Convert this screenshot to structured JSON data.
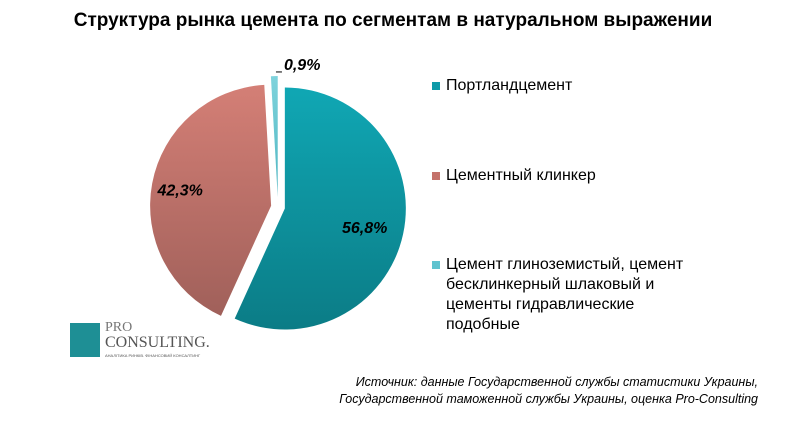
{
  "chart_data": {
    "type": "pie",
    "title": "Структура рынка цемента по сегментам в натуральном выражении",
    "categories": [
      "Портландцемент",
      "Цементный клинкер",
      "Цемент глиноземистый, цемент бесклинкерный шлаковый и цементы гидравлические подобные"
    ],
    "values": [
      56.8,
      42.3,
      0.9
    ],
    "data_labels": [
      "56,8%",
      "42,3%",
      "0,9%"
    ],
    "colors": [
      "#0e9aa8",
      "#c4726a",
      "#5fc3cf"
    ],
    "legend_position": "right"
  },
  "source": {
    "line1": "Источник: данные Государственной службы статистики Украины,",
    "line2": "Государственной таможенной службы Украины, оценка Pro-Consulting"
  },
  "logo": {
    "pro": "PRO",
    "consulting": "CONSULTING.",
    "tagline": "АНАЛІТИКА РИНКІВ. ФІНАНСОВИЙ КОНСАЛТИНГ"
  }
}
